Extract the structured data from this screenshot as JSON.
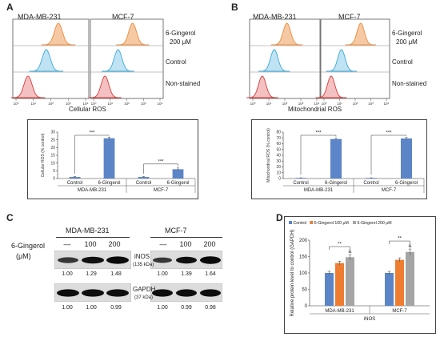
{
  "panelA": {
    "label": "A",
    "col1": "MDA-MB-231",
    "col2": "MCF-7",
    "row_labels": [
      "6-Gingerol",
      "200 μM",
      "Control",
      "Non-stained"
    ],
    "xaxis": "Cellular ROS",
    "ticks": [
      "10⁰",
      "10¹",
      "10²",
      "10³",
      "10⁴"
    ]
  },
  "panelB": {
    "label": "B",
    "col1": "MDA-MB-231",
    "col2": "MCF-7",
    "row_labels": [
      "6-Gingerol",
      "200 μM",
      "Control",
      "Non-stained"
    ],
    "xaxis": "Mitochondrial ROS",
    "ticks": [
      "10⁰",
      "10¹",
      "10²",
      "10³",
      "10⁴"
    ]
  },
  "barA": {
    "chart_data": {
      "type": "bar",
      "ylabel": "Cellular ROS (% control)",
      "ylim": [
        0,
        30
      ],
      "yticks": [
        "0",
        "5",
        "10",
        "15",
        "20",
        "25",
        "30"
      ],
      "groups": [
        "MDA-MB-231",
        "MCF-7"
      ],
      "categories": [
        "Control",
        "6-Gingerol",
        "Control",
        "6-Gingerol"
      ],
      "values": [
        1,
        26,
        1,
        6
      ],
      "errors": [
        0.3,
        0.8,
        0.3,
        0.8
      ],
      "significance": [
        "***",
        "***"
      ],
      "color": "#5b85c6"
    }
  },
  "barB": {
    "chart_data": {
      "type": "bar",
      "ylabel": "Mitochondrial ROS (% control)",
      "ylim": [
        0,
        80
      ],
      "yticks": [
        "0",
        "10",
        "20",
        "30",
        "40",
        "50",
        "60",
        "70",
        "80"
      ],
      "groups": [
        "MDA-MB-231",
        "MCF-7"
      ],
      "categories": [
        "Control",
        "6-Gingerol",
        "Control",
        "6-Gingerol"
      ],
      "values": [
        1,
        68,
        1,
        69
      ],
      "errors": [
        0.3,
        1.5,
        0.3,
        2
      ],
      "significance": [
        "***",
        "***"
      ],
      "color": "#5b85c6"
    }
  },
  "panelC": {
    "label": "C",
    "treatment": "6-Gingerol",
    "unit": "(μM)",
    "cell_lines": [
      "MDA-MB-231",
      "MCF-7"
    ],
    "doses": [
      "—",
      "100",
      "200"
    ],
    "proteins": [
      {
        "name": "iNOS",
        "size": "(135 kDa)"
      },
      {
        "name": "GAPDH",
        "size": "(37 kDa)"
      }
    ],
    "quant": {
      "inos_mda": [
        "1.00",
        "1.29",
        "1.48"
      ],
      "inos_mcf": [
        "1.00",
        "1.39",
        "1.64"
      ],
      "gapdh_mda": [
        "1.00",
        "1.00",
        "0.99"
      ],
      "gapdh_mcf": [
        "1.00",
        "0.99",
        "0.98"
      ]
    }
  },
  "panelD": {
    "label": "D",
    "chart_data": {
      "type": "bar",
      "legend": [
        "Control",
        "6-Gingerol 100 μM",
        "6-Gingerol 200 μM"
      ],
      "legend_placement": "top",
      "colors": [
        "#5b85c6",
        "#ed7d31",
        "#a5a5a5"
      ],
      "ylabel": "Relative protein level to control (GAPDH)",
      "xlabel": "iNOS",
      "ylim": [
        0,
        200
      ],
      "yticks": [
        "0",
        "50",
        "100",
        "150",
        "200"
      ],
      "categories": [
        "MDA-MB-231",
        "MCF-7"
      ],
      "series": [
        {
          "name": "Control",
          "values": [
            100,
            100
          ],
          "errors": [
            5,
            5
          ]
        },
        {
          "name": "6-Gingerol 100 μM",
          "values": [
            130,
            140
          ],
          "errors": [
            6,
            6
          ]
        },
        {
          "name": "6-Gingerol 200 μM",
          "values": [
            148,
            164
          ],
          "errors": [
            8,
            9
          ]
        }
      ],
      "significance": [
        "**",
        "**"
      ],
      "markers": [
        "&",
        "&"
      ]
    }
  }
}
